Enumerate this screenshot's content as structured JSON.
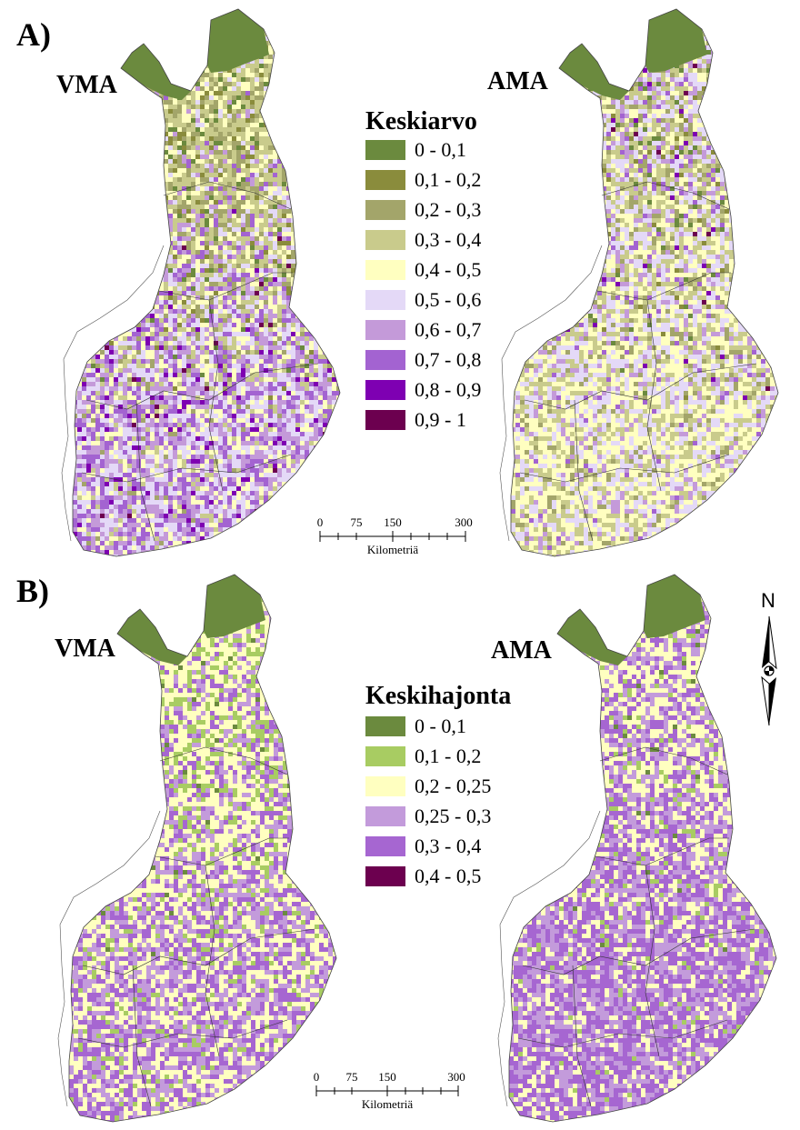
{
  "panels": [
    {
      "letter": "A)",
      "maps": [
        "VMA",
        "AMA"
      ],
      "legend": {
        "title": "Keskiarvo",
        "items": [
          {
            "label": "0 - 0,1",
            "color": "#6b8a3e"
          },
          {
            "label": "0,1 - 0,2",
            "color": "#8a8c3c"
          },
          {
            "label": "0,2 - 0,3",
            "color": "#a3a56a"
          },
          {
            "label": "0,3 - 0,4",
            "color": "#c9cb8c"
          },
          {
            "label": "0,4 - 0,5",
            "color": "#ffffc0"
          },
          {
            "label": "0,5 - 0,6",
            "color": "#e4d9f7"
          },
          {
            "label": "0,6 - 0,7",
            "color": "#c49ad9"
          },
          {
            "label": "0,7 - 0,8",
            "color": "#a363d1"
          },
          {
            "label": "0,8 - 0,9",
            "color": "#7e00b2"
          },
          {
            "label": "0,9 - 1",
            "color": "#6c004f"
          }
        ]
      },
      "scalebar": {
        "ticks": [
          "0",
          "75",
          "150",
          "300"
        ],
        "unit": "Kilometriä"
      }
    },
    {
      "letter": "B)",
      "maps": [
        "VMA",
        "AMA"
      ],
      "legend": {
        "title": "Keskihajonta",
        "items": [
          {
            "label": "0 - 0,1",
            "color": "#6b8a3e"
          },
          {
            "label": "0,1 - 0,2",
            "color": "#a8cc62"
          },
          {
            "label": "0,2 - 0,25",
            "color": "#ffffc0"
          },
          {
            "label": "0,25 - 0,3",
            "color": "#c39bdb"
          },
          {
            "label": "0,3 - 0,4",
            "color": "#a666d1"
          },
          {
            "label": "0,4 - 0,5",
            "color": "#6c004f"
          }
        ]
      },
      "scalebar": {
        "ticks": [
          "0",
          "75",
          "150",
          "300"
        ],
        "unit": "Kilometriä"
      }
    }
  ],
  "north_arrow": {
    "letter": "N"
  },
  "map_fill": {
    "A_VMA": {
      "palette": [
        0,
        1,
        2,
        3,
        4,
        5,
        6,
        7,
        8,
        9
      ],
      "north": [
        0.06,
        0.06,
        0.22,
        0.36,
        0.2,
        0.06,
        0.03,
        0.01,
        0.0,
        0.0
      ],
      "south": [
        0.0,
        0.0,
        0.02,
        0.05,
        0.16,
        0.26,
        0.26,
        0.2,
        0.04,
        0.01
      ]
    },
    "A_AMA": {
      "palette": [
        0,
        1,
        2,
        3,
        4,
        5,
        6,
        7,
        8,
        9
      ],
      "north": [
        0.03,
        0.03,
        0.12,
        0.22,
        0.16,
        0.24,
        0.12,
        0.05,
        0.02,
        0.01
      ],
      "south": [
        0.0,
        0.0,
        0.06,
        0.2,
        0.38,
        0.26,
        0.08,
        0.02,
        0.0,
        0.0
      ]
    },
    "B_VMA": {
      "palette": [
        0,
        1,
        2,
        3,
        4,
        5
      ],
      "north": [
        0.02,
        0.24,
        0.46,
        0.16,
        0.12,
        0.0
      ],
      "south": [
        0.0,
        0.06,
        0.34,
        0.3,
        0.3,
        0.0
      ]
    },
    "B_AMA": {
      "palette": [
        0,
        1,
        2,
        3,
        4,
        5
      ],
      "north": [
        0.02,
        0.06,
        0.4,
        0.3,
        0.22,
        0.0
      ],
      "south": [
        0.0,
        0.02,
        0.2,
        0.34,
        0.44,
        0.0
      ]
    }
  }
}
